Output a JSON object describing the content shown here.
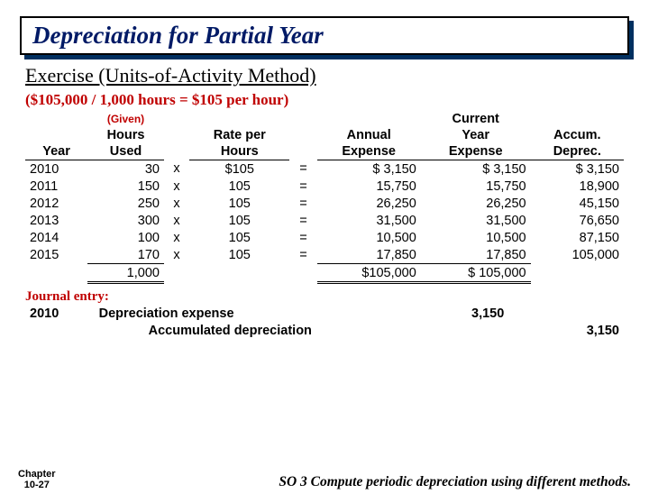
{
  "title": "Depreciation for Partial Year",
  "subtitle": "Exercise (Units-of-Activity Method)",
  "formula": "($105,000 / 1,000 hours = $105 per hour)",
  "table": {
    "headers": {
      "year": "Year",
      "hours_pre": "(Given)",
      "hours1": "Hours",
      "hours2": "Used",
      "rate1": "Rate per",
      "rate2": "Hours",
      "annual1": "Annual",
      "annual2": "Expense",
      "curr0": "Current",
      "curr1": "Year",
      "curr2": "Expense",
      "accum1": "Accum.",
      "accum2": "Deprec."
    },
    "rows": [
      {
        "year": "2010",
        "hours": "30",
        "op1": "x",
        "rate": "$105",
        "op2": "=",
        "annual": "$    3,150",
        "curr": "$      3,150",
        "accum": "$  3,150"
      },
      {
        "year": "2011",
        "hours": "150",
        "op1": "x",
        "rate": "105",
        "op2": "=",
        "annual": "15,750",
        "curr": "15,750",
        "accum": "18,900"
      },
      {
        "year": "2012",
        "hours": "250",
        "op1": "x",
        "rate": "105",
        "op2": "=",
        "annual": "26,250",
        "curr": "26,250",
        "accum": "45,150"
      },
      {
        "year": "2013",
        "hours": "300",
        "op1": "x",
        "rate": "105",
        "op2": "=",
        "annual": "31,500",
        "curr": "31,500",
        "accum": "76,650"
      },
      {
        "year": "2014",
        "hours": "100",
        "op1": "x",
        "rate": "105",
        "op2": "=",
        "annual": "10,500",
        "curr": "10,500",
        "accum": "87,150"
      },
      {
        "year": "2015",
        "hours": "170",
        "op1": "x",
        "rate": "105",
        "op2": "=",
        "annual": "17,850",
        "curr": "17,850",
        "accum": "105,000"
      }
    ],
    "totals": {
      "hours": "1,000",
      "annual": "$105,000",
      "curr": "$ 105,000"
    }
  },
  "journal": {
    "label": "Journal entry:",
    "year": "2010",
    "debit_acct": "Depreciation expense",
    "debit_amt": "3,150",
    "credit_acct": "Accumulated depreciation",
    "credit_amt": "3,150"
  },
  "footer": {
    "chapter1": "Chapter",
    "chapter2": "10-27",
    "so": "SO 3  Compute periodic depreciation using different methods."
  }
}
